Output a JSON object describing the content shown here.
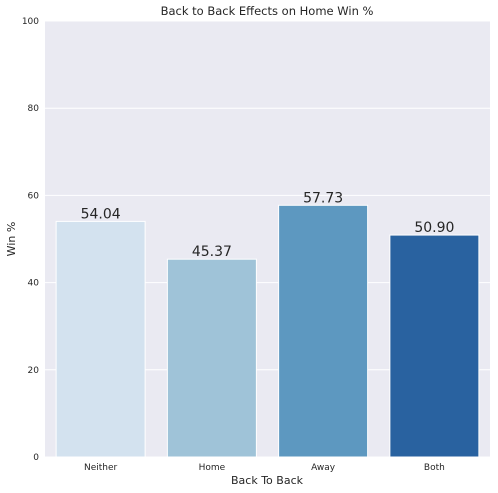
{
  "chart_data": {
    "type": "bar",
    "title": "Back to Back Effects on Home Win %",
    "xlabel": "Back To Back",
    "ylabel": "Win %",
    "categories": [
      "Neither",
      "Home",
      "Away",
      "Both"
    ],
    "values": [
      54.04,
      45.37,
      57.73,
      50.9
    ],
    "value_labels": [
      "54.04",
      "45.37",
      "57.73",
      "50.90"
    ],
    "colors": [
      "#d3e2ef",
      "#9fc3d8",
      "#5d98c0",
      "#2962a0"
    ],
    "ylim": [
      0,
      100
    ],
    "yticks": [
      0,
      20,
      40,
      60,
      80,
      100
    ],
    "grid": true,
    "background": "#eaeaf2",
    "grid_color": "#ffffff"
  }
}
